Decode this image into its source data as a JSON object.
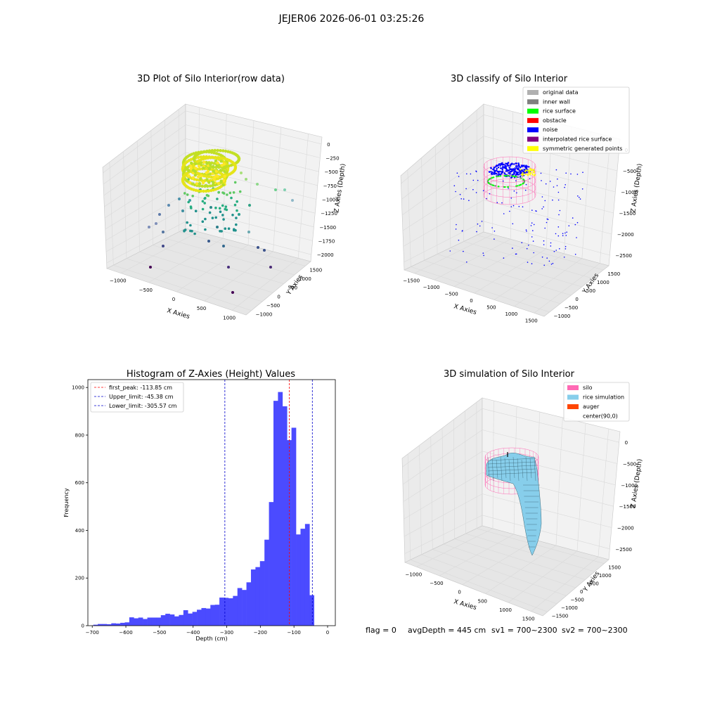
{
  "suptitle": "JEJER06 2026-06-01 03:25:26",
  "footer": {
    "flag": "flag = 0",
    "avg": "avgDepth = 445 cm",
    "sv1": "sv1 = 700~2300",
    "sv2": "sv2 = 700~2300"
  },
  "colors": {
    "hist_bar": "#4b4bff",
    "first_peak": "#ff0000",
    "limit_line": "#0000cc",
    "pane": "#f2f2f2",
    "grid": "#d9d9d9",
    "silo": "#ff69b4",
    "rice_sim": "#87ceeb",
    "auger": "#ff4500",
    "noise": "#0000ff",
    "rice_surface": "#00ff00",
    "symmetric": "#ffff00"
  },
  "chart_data": [
    {
      "type": "scatter",
      "title": "3D Plot of Silo Interior(row data)",
      "xlabel": "X Axies",
      "ylabel": "Y Axies",
      "zlabel": "Z Axies (Depth)",
      "x_ticks": [
        "−1000",
        "−500",
        "0",
        "500",
        "1000"
      ],
      "y_ticks": [
        "−1000",
        "−500",
        "0",
        "500",
        "1000",
        "1500"
      ],
      "z_ticks": [
        "0",
        "−250",
        "−500",
        "−750",
        "−1000",
        "−1250",
        "−1500",
        "−1750",
        "−2000"
      ]
    },
    {
      "type": "scatter",
      "title": "3D classify of Silo Interior",
      "xlabel": "X Axies",
      "ylabel": "Y Axies",
      "zlabel": "Z Axies (Depth)",
      "x_ticks": [
        "−1500",
        "−1000",
        "−500",
        "0",
        "500",
        "1000",
        "1500"
      ],
      "y_ticks": [
        "−1000",
        "−500",
        "0",
        "500",
        "1000",
        "1500"
      ],
      "z_ticks": [
        "0",
        "−500",
        "−1000",
        "−1500",
        "−2000",
        "−2500"
      ],
      "legend": [
        {
          "label": "original data",
          "color": "#b0b0b0"
        },
        {
          "label": "inner wall",
          "color": "#808080"
        },
        {
          "label": "rice surface",
          "color": "#00ff00"
        },
        {
          "label": "obstacle",
          "color": "#ff0000"
        },
        {
          "label": "noise",
          "color": "#0000ff"
        },
        {
          "label": "interpolated rice surface",
          "color": "#800080"
        },
        {
          "label": "symmetric generated points",
          "color": "#ffff00"
        }
      ],
      "legend_position": "top-right"
    },
    {
      "type": "bar",
      "title": "Histogram of Z-Axies (Height) Values",
      "xlabel": "Depth (cm)",
      "ylabel": "Frequency",
      "xlim": [
        -713,
        23
      ],
      "ylim": [
        0,
        1033
      ],
      "x_ticks": [
        -700,
        -600,
        -500,
        -400,
        -300,
        -200,
        -100,
        0
      ],
      "y_ticks": [
        0,
        200,
        400,
        600,
        800,
        1000
      ],
      "bin_start": -697,
      "bin_width": 13.4,
      "values": [
        4,
        7,
        7,
        6,
        10,
        9,
        12,
        14,
        35,
        31,
        34,
        28,
        34,
        34,
        34,
        44,
        50,
        47,
        39,
        45,
        65,
        51,
        58,
        67,
        74,
        72,
        87,
        88,
        118,
        117,
        115,
        125,
        158,
        150,
        182,
        236,
        246,
        271,
        361,
        519,
        944,
        981,
        921,
        779,
        831,
        383,
        407,
        427,
        128
      ],
      "vlines": [
        {
          "label": "first_peak: -113.85 cm",
          "x": -113.85,
          "color": "#ff0000"
        },
        {
          "label": "Upper_limit: -45.38 cm",
          "x": -45.38,
          "color": "#0000cc"
        },
        {
          "label": "Lower_limit: -305.57 cm",
          "x": -305.57,
          "color": "#0000cc"
        }
      ],
      "legend_position": "top-left"
    },
    {
      "type": "area",
      "title": "3D simulation of Silo Interior",
      "xlabel": "X Axies",
      "ylabel": "Y Axies",
      "zlabel": "Z Axies (Depth)",
      "x_ticks": [
        "−1000",
        "−500",
        "0",
        "500",
        "1000",
        "1500"
      ],
      "y_ticks": [
        "−1500",
        "−1000",
        "−500",
        "0",
        "500",
        "1000",
        "1500"
      ],
      "z_ticks": [
        "0",
        "−500",
        "−1000",
        "−1500",
        "−2000",
        "−2500"
      ],
      "legend": [
        {
          "label": "silo",
          "color": "#ff69b4"
        },
        {
          "label": "rice simulation",
          "color": "#87ceeb"
        },
        {
          "label": "auger",
          "color": "#ff4500"
        },
        {
          "label": "center(90,0)",
          "color": ""
        }
      ],
      "legend_position": "top-right"
    }
  ]
}
